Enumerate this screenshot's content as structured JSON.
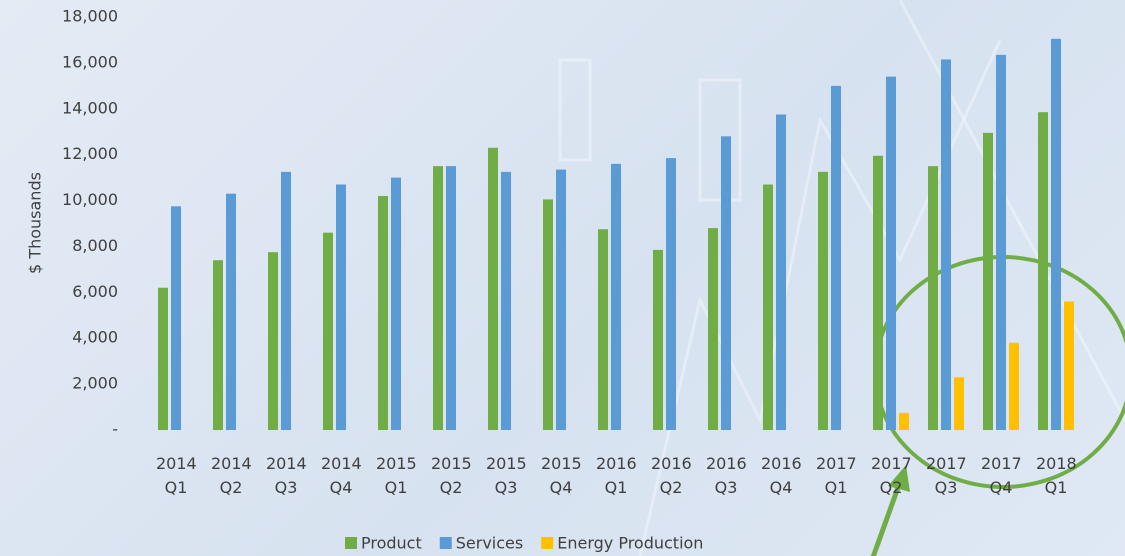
{
  "chart_data": {
    "type": "bar",
    "y_label": "$ Thousands",
    "categories": [
      "2014 Q1",
      "2014 Q2",
      "2014 Q3",
      "2014 Q4",
      "2015 Q1",
      "2015 Q2",
      "2015 Q3",
      "2015 Q4",
      "2016 Q1",
      "2016 Q2",
      "2016 Q3",
      "2016 Q4",
      "2017 Q1",
      "2017 Q2",
      "2017 Q3",
      "2017 Q4",
      "2018 Q1"
    ],
    "series": [
      {
        "name": "Product",
        "color": "#70ad47",
        "values": [
          6200,
          7400,
          7750,
          8600,
          10200,
          11500,
          12300,
          10050,
          8750,
          7850,
          8800,
          10700,
          11250,
          11950,
          11500,
          12950,
          13850
        ]
      },
      {
        "name": "Services",
        "color": "#5b9bd5",
        "values": [
          9750,
          10300,
          11250,
          10700,
          11000,
          11500,
          11250,
          11350,
          11600,
          11850,
          12800,
          13750,
          15000,
          15400,
          16150,
          16350,
          17050
        ]
      },
      {
        "name": "Energy Production",
        "color": "#ffc000",
        "values": [
          null,
          null,
          null,
          null,
          null,
          null,
          null,
          null,
          null,
          null,
          null,
          null,
          null,
          750,
          2300,
          3800,
          5600
        ]
      }
    ],
    "ylim": [
      0,
      18000
    ],
    "yticks": [
      {
        "value": 0,
        "label": "-"
      },
      {
        "value": 2000,
        "label": "2,000"
      },
      {
        "value": 4000,
        "label": "4,000"
      },
      {
        "value": 6000,
        "label": "6,000"
      },
      {
        "value": 8000,
        "label": "8,000"
      },
      {
        "value": 10000,
        "label": "10,000"
      },
      {
        "value": 12000,
        "label": "12,000"
      },
      {
        "value": 14000,
        "label": "14,000"
      },
      {
        "value": 16000,
        "label": "16,000"
      },
      {
        "value": 18000,
        "label": "18,000"
      }
    ],
    "legend": "bottom"
  }
}
